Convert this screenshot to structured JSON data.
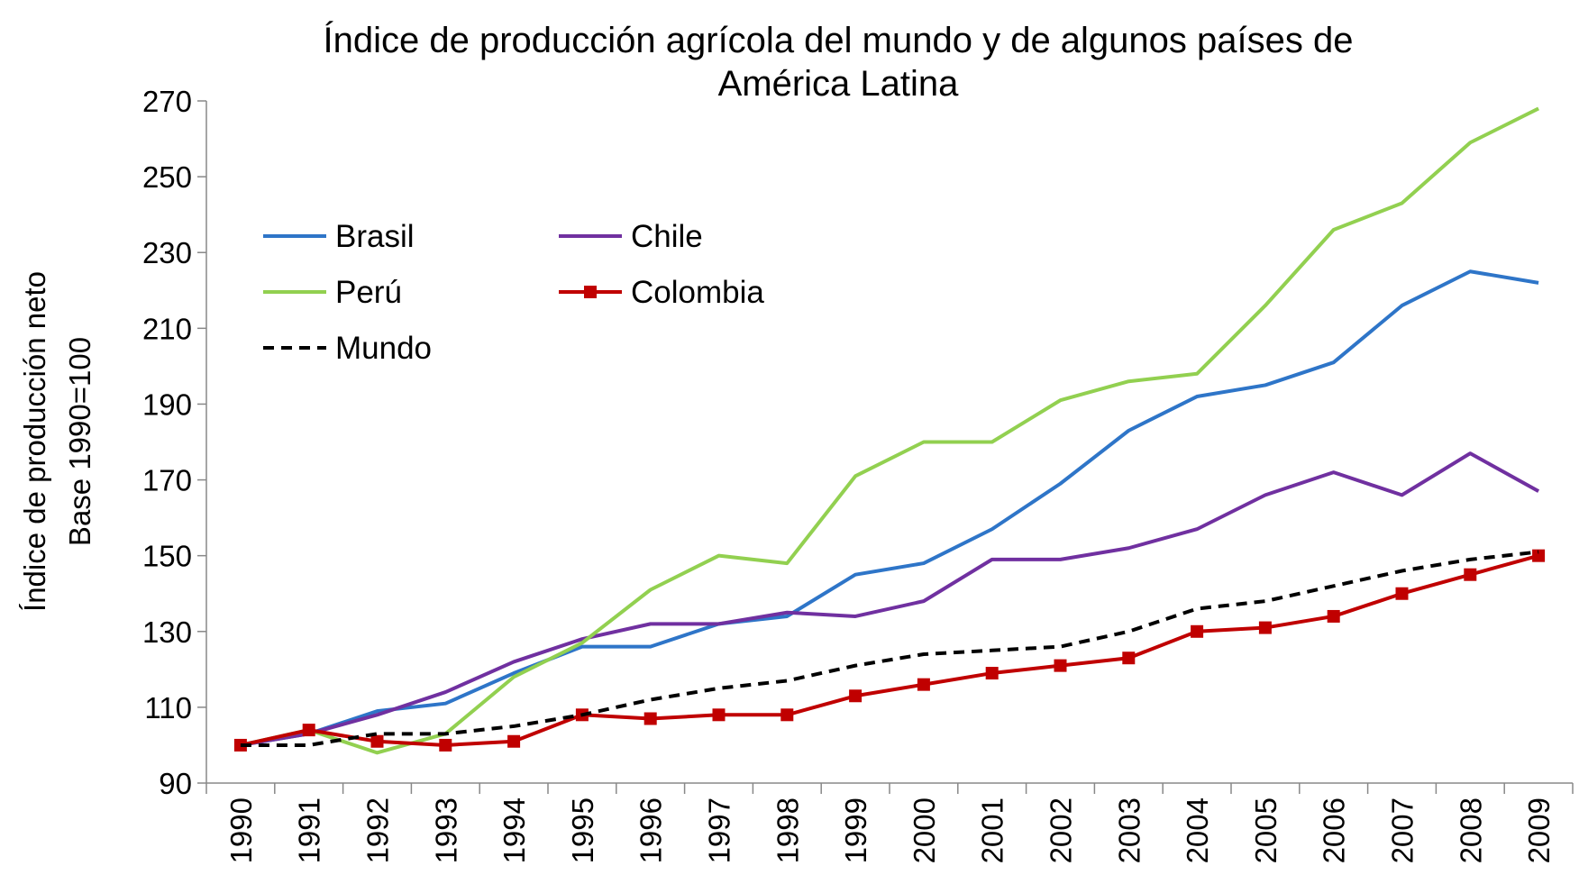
{
  "chart_data": {
    "type": "line",
    "title": [
      "Índice de producción agrícola del mundo y de algunos países de",
      "América Latina"
    ],
    "y_label": [
      "Índice de producción neto",
      "Base 1990=100"
    ],
    "categories": [
      "1990",
      "1991",
      "1992",
      "1993",
      "1994",
      "1995",
      "1996",
      "1997",
      "1998",
      "1999",
      "2000",
      "2001",
      "2002",
      "2003",
      "2004",
      "2005",
      "2006",
      "2007",
      "2008",
      "2009"
    ],
    "series": [
      {
        "name": "Brasil",
        "color": "#2e75c8",
        "dash": false,
        "marker": false,
        "values": [
          100,
          103,
          109,
          111,
          119,
          126,
          126,
          132,
          134,
          145,
          148,
          157,
          169,
          183,
          192,
          195,
          201,
          216,
          225,
          222
        ]
      },
      {
        "name": "Chile",
        "color": "#7030a0",
        "dash": false,
        "marker": false,
        "values": [
          100,
          103,
          108,
          114,
          122,
          128,
          132,
          132,
          135,
          134,
          138,
          149,
          149,
          152,
          157,
          166,
          172,
          166,
          177,
          167
        ]
      },
      {
        "name": "Perú",
        "color": "#92d050",
        "dash": false,
        "marker": false,
        "values": [
          100,
          104,
          98,
          103,
          118,
          127,
          141,
          150,
          148,
          171,
          180,
          180,
          191,
          196,
          198,
          216,
          236,
          243,
          259,
          268
        ]
      },
      {
        "name": "Colombia",
        "color": "#c00000",
        "dash": false,
        "marker": true,
        "values": [
          100,
          104,
          101,
          100,
          101,
          108,
          107,
          108,
          108,
          113,
          116,
          119,
          121,
          123,
          130,
          131,
          134,
          140,
          145,
          150
        ]
      },
      {
        "name": "Mundo",
        "color": "#000000",
        "dash": true,
        "marker": false,
        "values": [
          100,
          100,
          103,
          103,
          105,
          108,
          112,
          115,
          117,
          121,
          124,
          125,
          126,
          130,
          136,
          138,
          142,
          146,
          149,
          151
        ]
      }
    ],
    "ylim": [
      90,
      270
    ],
    "yticks": [
      90,
      110,
      130,
      150,
      170,
      190,
      210,
      230,
      250,
      270
    ],
    "grid": false,
    "legend_position": "upper-left"
  }
}
